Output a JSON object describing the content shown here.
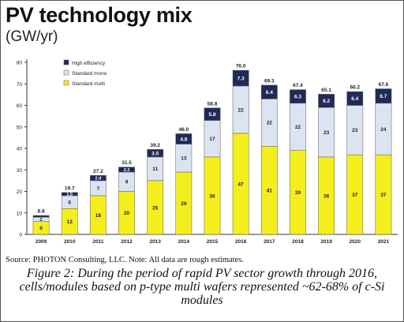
{
  "title": "PV technology mix",
  "subtitle": "(GW/yr)",
  "source": "Source: PHOTON Consulting, LLC. Note: All data are rough estimates.",
  "caption": "Figure 2: During the period of rapid PV sector growth through 2016, cells/modules based on p-type multi wafers represented ~62-68% of c-Si modules",
  "colors": {
    "standard_multi": "#f5ee1d",
    "standard_mono": "#dde4f1",
    "high_efficiency": "#1f2a58",
    "axis": "#333333"
  },
  "chart_data": {
    "type": "bar",
    "stacked": true,
    "categories": [
      "2009",
      "2010",
      "2011",
      "2012",
      "2013",
      "2014",
      "2015",
      "2016",
      "2017",
      "2018",
      "2019",
      "2020",
      "2021"
    ],
    "series": [
      {
        "name": "Standard multi",
        "values": [
          6,
          12,
          18,
          20,
          25,
          29,
          36,
          47,
          41,
          39,
          36,
          37,
          37
        ],
        "labels": [
          "6",
          "12",
          "18",
          "20",
          "25",
          "29",
          "36",
          "47",
          "41",
          "39",
          "36",
          "37",
          "37"
        ],
        "color": "#f5ee1d"
      },
      {
        "name": "Standard mono",
        "values": [
          2,
          6,
          7,
          9,
          11,
          13,
          17,
          22,
          22,
          22,
          23,
          23,
          24
        ],
        "labels": [
          "2",
          "6",
          "7",
          "9",
          "11",
          "13",
          "17",
          "22",
          "22",
          "22",
          "23",
          "23",
          "24"
        ],
        "color": "#dde4f1"
      },
      {
        "name": "High efficiency",
        "values": [
          0.8,
          1.5,
          2.4,
          2.3,
          3.5,
          4.8,
          5.8,
          7.3,
          6.4,
          6.3,
          6.2,
          6.4,
          6.7
        ],
        "labels": [
          "",
          "1.5",
          "2.4",
          "2.3",
          "3.5",
          "4.8",
          "5.8",
          "7.3",
          "6.4",
          "6.3",
          "6.2",
          "6.4",
          "6.7"
        ],
        "color": "#1f2a58"
      }
    ],
    "totals": [
      "8.8",
      "19.7",
      "27.2",
      "31.5",
      "39.2",
      "46.0",
      "58.8",
      "76.0",
      "69.3",
      "67.4",
      "65.1",
      "66.2",
      "67.6"
    ],
    "yticks": [
      "0",
      "10",
      "20",
      "30",
      "40",
      "50",
      "60",
      "70",
      "80"
    ],
    "ylim": [
      0,
      80
    ],
    "legend": [
      "High efficiency",
      "Standard mono",
      "Standard multi"
    ],
    "legend_position": "top-left",
    "grid": false
  }
}
